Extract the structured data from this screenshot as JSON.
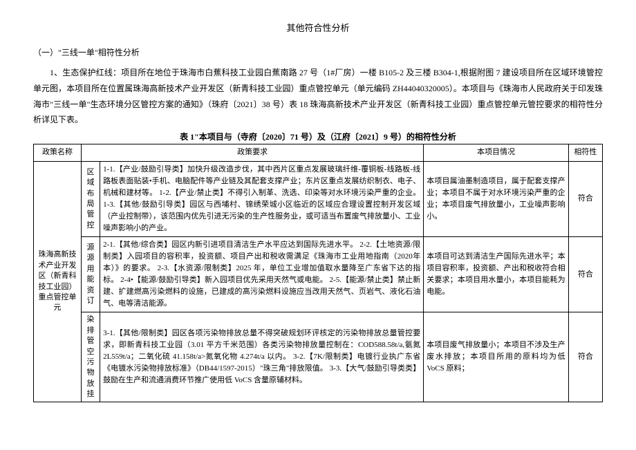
{
  "title": "其他符合性分析",
  "section_heading": "（一）\"三线一单\"相符性分析",
  "para1": "1、生态保护红线：项目所在地位于珠海市白蕉科技工业园白蕉南路 27 号（1#厂房）一楼 B105-2 及三楼 B304-1,根据附图 7 建设项目所在区域环境管控单元图，本项目所在位置属珠海高新技术产业开发区（新青科技工业园）重点管控单元（单元编码 ZH44040320005）。本项目与《珠海市人民政府关于印发珠海市\"三线一单\"生态环境分区管控方案的通知》（珠府〔2021〕38 号）表 18 珠海高新技术产业开发区（新青科技工业园）重点管控单元管控要求的相符性分析详见下表。",
  "table_caption": "表 1\"本项目与（寺府〔2020〕71 号）及（江府〔2021〕9 号）的相符性分析",
  "headers": {
    "policy": "政策名称",
    "requirement": "政策要求",
    "situation": "本项目情况",
    "conform": "相符性"
  },
  "policy_name": "珠海高新技术产业开发区（新青科技工业园）重点管控单元",
  "rows": [
    {
      "cat": "区域布局管控",
      "req": "1-1.【产业/鼓励引导类】加快升级改造步伐，其中西片区重点发展玻璃纤维-覆铜板-线路板-线路板表面贴装•手机、电脑配件等产业链及其配套支撑产业；东片区重点发展纺织制衣、电子、机械和建材等。\n1-2.【产业/禁止类】不得引入制革、洗选、印染等对水环境污染严重的企业。\n1-3.【其他/鼓励引导类】园区与西埔村、锦绣荣城小区临近的区域应合理设置控制开发区域（产业控制带），该范围内优先引进无污染的生产性服务业，或可适当布置废气排放量小、工业噪声影响小的产业。",
      "sit": "本项目属油墨制造项目，属于配套支撑产业；本项目不属于对水环境污染严重的企业；本项目废气排放量小，工业噪声影响小。",
      "conf": "符合"
    },
    {
      "cat": "源源用能资订",
      "req": "2-1.【其他/综合类】园区内新引进项目清洁生产水平应达到国际先进水平。\n2-2.【土地资源/限制类】入园项目的容积率，投资额、项目产出和税收需满足《珠海市工业用地指南（2020年本）》的要求。\n2-3.【水资源/限制类】2025 年，单位工业增加值取水量降至广东省下达的指标。\n2-4•【能源/鼓励引导类】新入园项目优先采用天然气或电能。\n2-5.【能源/禁止类】禁止新建、扩建燃高污染燃料的设施，已建成的高污染燃料设施应当改用天然气、页岩气、液化石油气、电等清洁能源。",
      "sit": "本项目可达到清洁生产国际先进水平；本项目容积率，投资额、产出和税收符合相关要求；本项目用水量小，本项目能耗为电能。",
      "conf": "符合"
    },
    {
      "cat": "染排管空污物放挂",
      "req": "3-1.【其他/限制类】园区各项污染物排放总量不得突破规划环评核定的污染物排放总量管控要求，即新青科技工业园（3.01 平方千米范围）各类污染物排放量控制在：COD588.58t/a,氨氮 2L559t/a；二氧化硫 41.158t/a>氮氧化物 4.274t/a 以内。\n3-2.【7K/限制类】电镀行业执广东省《电镀水污染物排放标准》（DB44/1597-2015）\"珠三角\"排放限值。\n3-3.【大气/鼓励引导类类】鼓励在生产和流通消费环节推广使用低 VoCS 含量原辅材料。",
      "sit": "本项目废气排放量小；本项目不涉及生产废水排放；本项目所用的原料均为低VoCS 原料；",
      "conf": "符合"
    }
  ]
}
